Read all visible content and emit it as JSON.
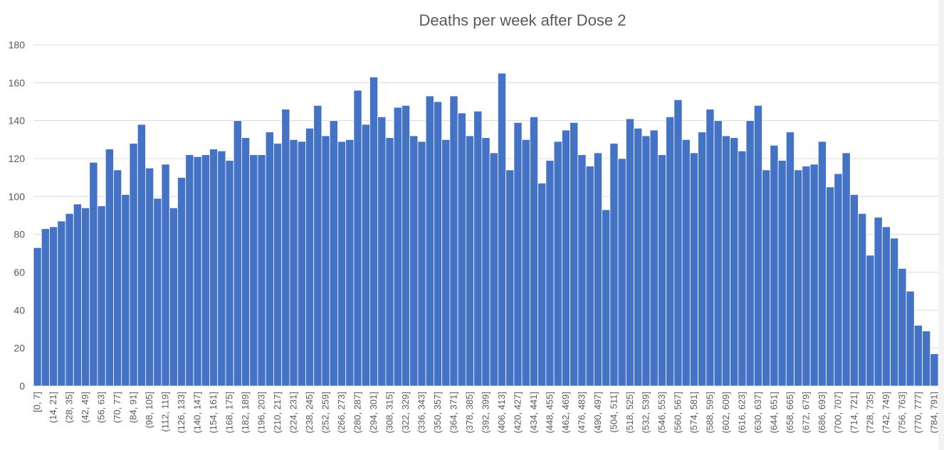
{
  "chart_data": {
    "type": "bar",
    "title": "Deaths per week after Dose 2",
    "xlabel": "",
    "ylabel": "",
    "ylim": [
      0,
      180
    ],
    "yticks": [
      0,
      20,
      40,
      60,
      80,
      100,
      120,
      140,
      160,
      180
    ],
    "grid": true,
    "categories": [
      "[0, 7]",
      "(7, 14]",
      "(14, 21]",
      "(21, 28]",
      "(28, 35]",
      "(35, 42]",
      "(42, 49]",
      "(49, 56]",
      "(56, 63]",
      "(63, 70]",
      "(70, 77]",
      "(77, 84]",
      "(84, 91]",
      "(91, 98]",
      "(98, 105]",
      "(105, 112]",
      "(112, 119]",
      "(119, 126]",
      "(126, 133]",
      "(133, 140]",
      "(140, 147]",
      "(147, 154]",
      "(154, 161]",
      "(161, 168]",
      "(168, 175]",
      "(175, 182]",
      "(182, 189]",
      "(189, 196]",
      "(196, 203]",
      "(203, 210]",
      "(210, 217]",
      "(217, 224]",
      "(224, 231]",
      "(231, 238]",
      "(238, 245]",
      "(245, 252]",
      "(252, 259]",
      "(259, 266]",
      "(266, 273]",
      "(273, 280]",
      "(280, 287]",
      "(287, 294]",
      "(294, 301]",
      "(301, 308]",
      "(308, 315]",
      "(315, 322]",
      "(322, 329]",
      "(329, 336]",
      "(336, 343]",
      "(343, 350]",
      "(350, 357]",
      "(357, 364]",
      "(364, 371]",
      "(371, 378]",
      "(378, 385]",
      "(385, 392]",
      "(392, 399]",
      "(399, 406]",
      "(406, 413]",
      "(413, 420]",
      "(420, 427]",
      "(427, 434]",
      "(434, 441]",
      "(441, 448]",
      "(448, 455]",
      "(455, 462]",
      "(462, 469]",
      "(469, 476]",
      "(476, 483]",
      "(483, 490]",
      "(490, 497]",
      "(497, 504]",
      "(504, 511]",
      "(511, 518]",
      "(518, 525]",
      "(525, 532]",
      "(532, 539]",
      "(539, 546]",
      "(546, 553]",
      "(553, 560]",
      "(560, 567]",
      "(567, 574]",
      "(574, 581]",
      "(581, 588]",
      "(588, 595]",
      "(595, 602]",
      "(602, 609]",
      "(609, 616]",
      "(616, 623]",
      "(623, 630]",
      "(630, 637]",
      "(637, 644]",
      "(644, 651]",
      "(651, 658]",
      "(658, 665]",
      "(665, 672]",
      "(672, 679]",
      "(679, 686]",
      "(686, 693]",
      "(693, 700]",
      "(700, 707]",
      "(707, 714]",
      "(714, 721]",
      "(721, 728]",
      "(728, 735]",
      "(735, 742]",
      "(742, 749]",
      "(749, 756]",
      "(756, 763]",
      "(763, 770]",
      "(770, 777]",
      "(777, 784]",
      "(784, 791]"
    ],
    "values": [
      73,
      83,
      84,
      87,
      91,
      96,
      94,
      118,
      95,
      125,
      114,
      101,
      128,
      138,
      115,
      99,
      117,
      94,
      110,
      122,
      121,
      122,
      125,
      124,
      119,
      140,
      131,
      122,
      122,
      134,
      128,
      146,
      130,
      129,
      136,
      148,
      132,
      140,
      129,
      130,
      156,
      138,
      163,
      142,
      131,
      147,
      148,
      132,
      129,
      153,
      150,
      130,
      153,
      144,
      132,
      145,
      131,
      123,
      165,
      114,
      139,
      130,
      142,
      107,
      119,
      129,
      135,
      139,
      122,
      116,
      123,
      93,
      128,
      120,
      141,
      136,
      132,
      135,
      122,
      142,
      151,
      130,
      123,
      134,
      146,
      140,
      132,
      131,
      124,
      140,
      148,
      114,
      127,
      119,
      134,
      114,
      116,
      117,
      129,
      105,
      112,
      123,
      101,
      91,
      69,
      89,
      84,
      78,
      62,
      50,
      32,
      29,
      17
    ],
    "label_every": 2,
    "bar_color": "#4472c4"
  }
}
